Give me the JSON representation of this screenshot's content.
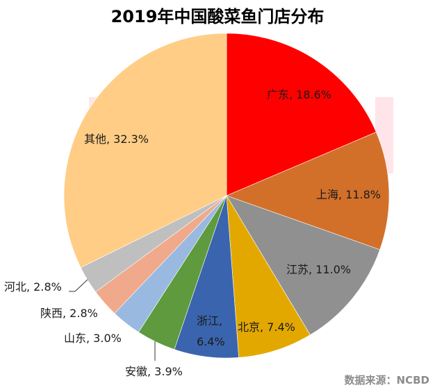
{
  "title": "2019年中国酸菜鱼门店分布",
  "source": "数据来源：NCBD",
  "chart_data": {
    "type": "pie",
    "title": "2019年中国酸菜鱼门店分布",
    "categories": [
      "广东",
      "上海",
      "江苏",
      "北京",
      "浙江",
      "安徽",
      "山东",
      "陕西",
      "河北",
      "其他"
    ],
    "values": [
      18.6,
      11.8,
      11.0,
      7.4,
      6.4,
      3.9,
      3.0,
      2.8,
      2.8,
      32.3
    ],
    "unit": "%",
    "colors": [
      "#ff0000",
      "#d2702a",
      "#909090",
      "#e3a800",
      "#3a64ad",
      "#5f9a3e",
      "#9ab9e0",
      "#f0a98a",
      "#bfbfbf",
      "#ffcd85"
    ],
    "start_angle_deg": 0,
    "direction": "clockwise",
    "labels": [
      "广东, 18.6%",
      "上海, 11.8%",
      "江苏, 11.0%",
      "北京, 7.4%",
      "浙江, 6.4%",
      "安徽, 3.9%",
      "山东, 3.0%",
      "陕西, 2.8%",
      "河北, 2.8%",
      "其他, 32.3%"
    ],
    "legend": "none"
  },
  "labels": {
    "guangdong": "广东, 18.6%",
    "shanghai": "上海, 11.8%",
    "jiangsu": "江苏, 11.0%",
    "beijing": "北京, 7.4%",
    "zhejiang_line1": "浙江,",
    "zhejiang_line2": "6.4%",
    "anhui": "安徽, 3.9%",
    "shandong": "山东, 3.0%",
    "shaanxi": "陕西, 2.8%",
    "hebei": "河北, 2.8%",
    "other": "其他, 32.3%"
  }
}
